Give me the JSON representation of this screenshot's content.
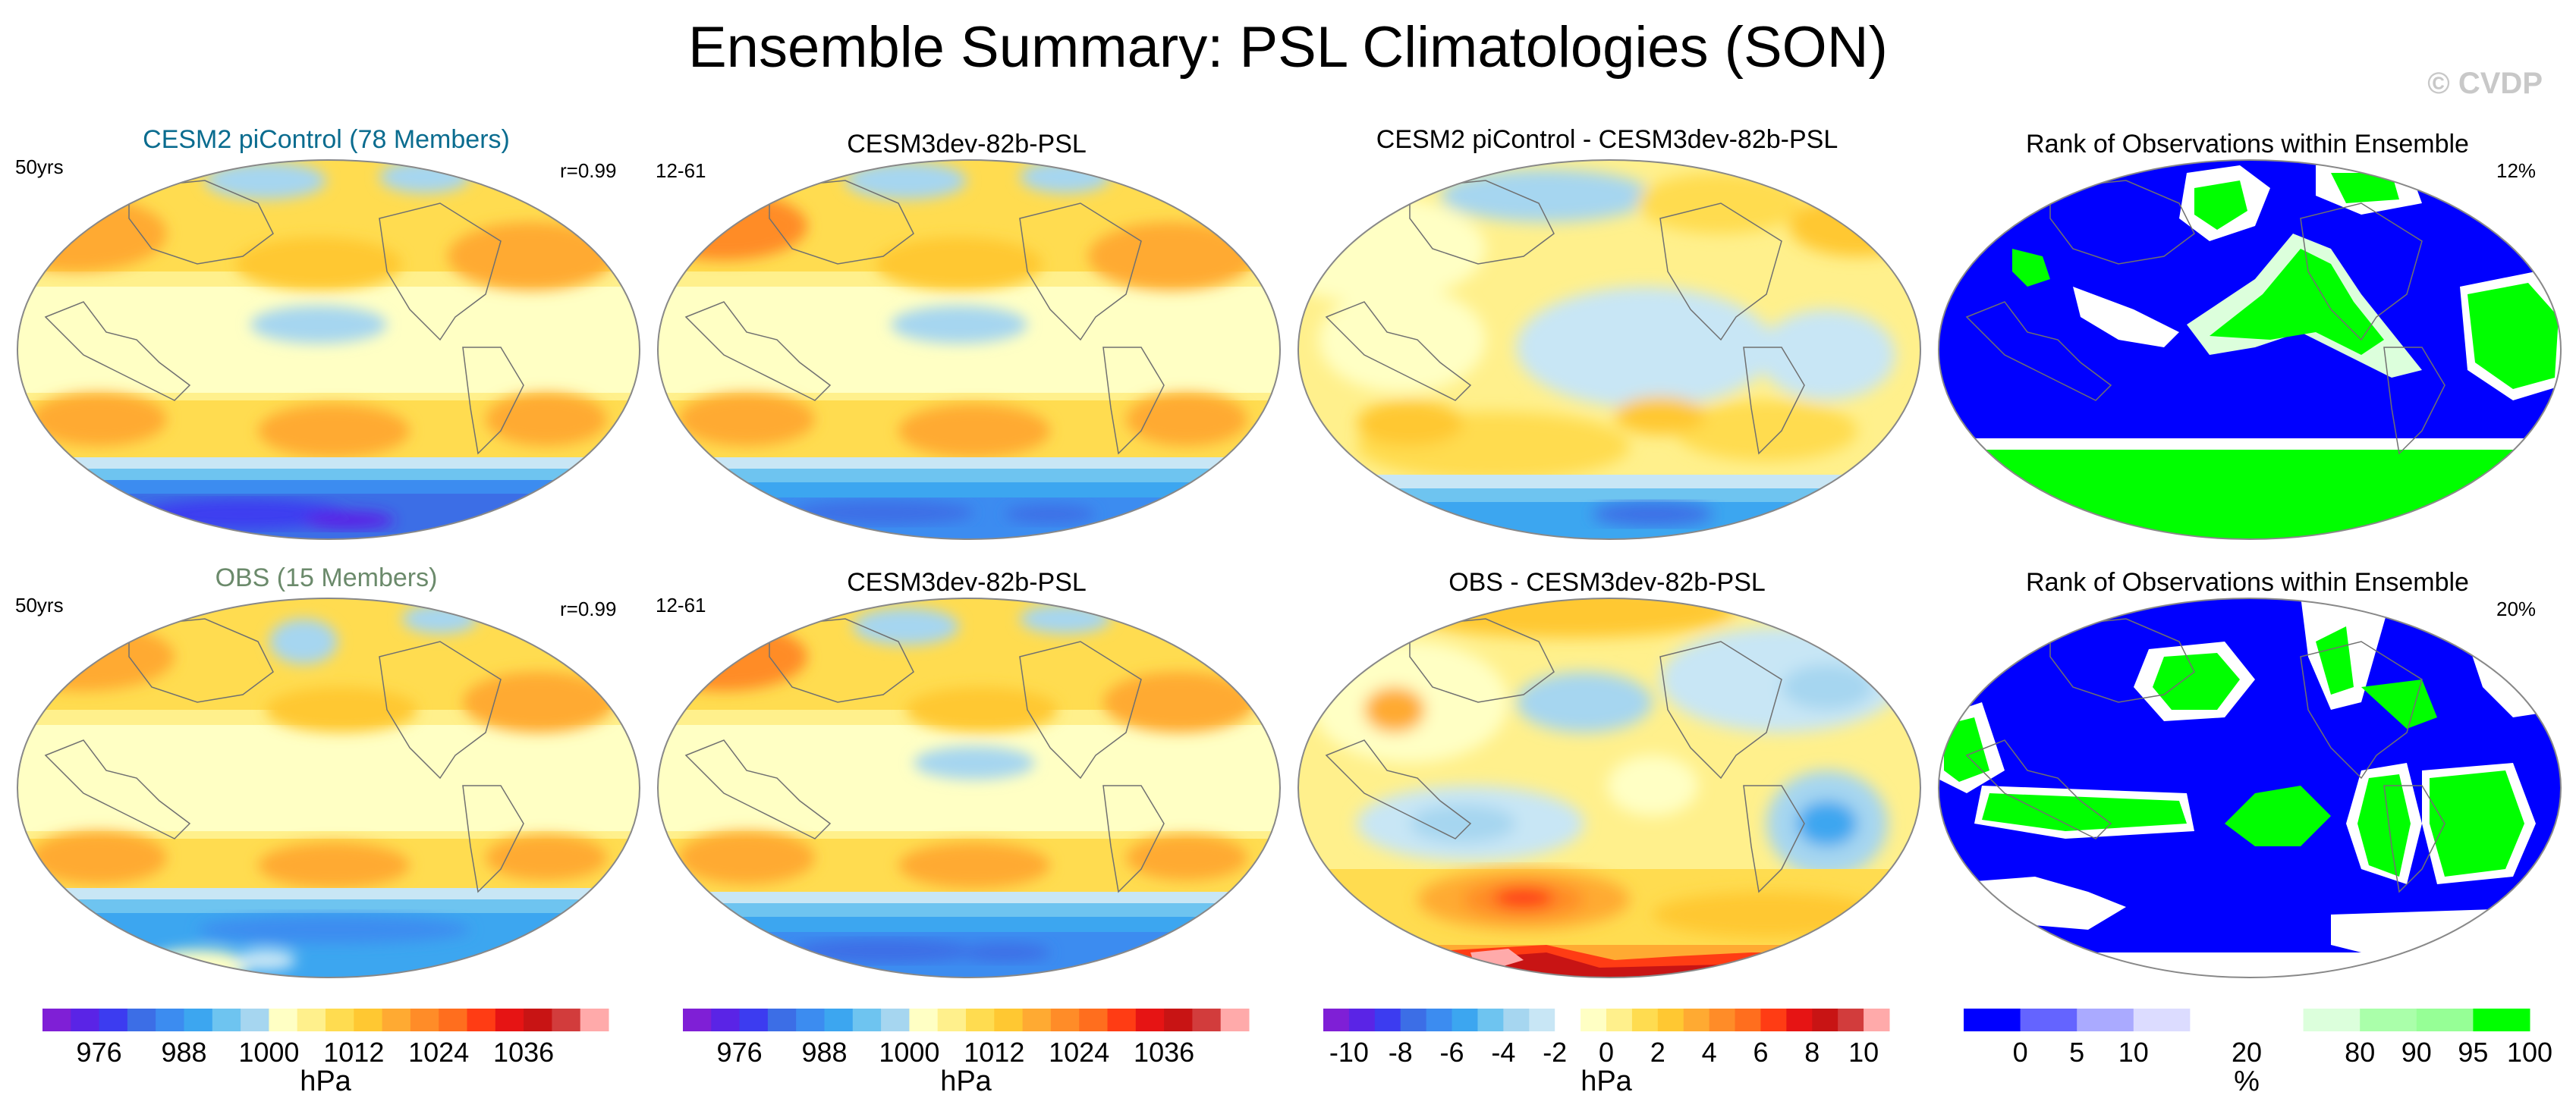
{
  "title": "Ensemble Summary: PSL Climatologies (SON)",
  "watermark": "© CVDP",
  "colors": {
    "title_ens": "#0a6c8f",
    "title_obs": "#6b8a6b",
    "psl_scale": [
      "#7f1fd6",
      "#5a24e6",
      "#3c3cf0",
      "#3c6ee6",
      "#3c8cf0",
      "#3ca6f0",
      "#6ec4f0",
      "#a6d6f0",
      "#ffffc4",
      "#fff08c",
      "#ffdc50",
      "#ffc832",
      "#ffaa32",
      "#ff8c28",
      "#ff6e1e",
      "#ff3c14",
      "#e61414",
      "#c81414",
      "#d23c3c",
      "#ffaaaa"
    ],
    "diff_scale": [
      "#7f1fd6",
      "#5a24e6",
      "#3c3cf0",
      "#3c6ee6",
      "#3c8cf0",
      "#3ca6f0",
      "#6ec4f0",
      "#a6d6f0",
      "#c8e6f5",
      "#ffffff",
      "#ffffc4",
      "#fff08c",
      "#ffdc50",
      "#ffc832",
      "#ffaa32",
      "#ff8c28",
      "#ff6e1e",
      "#ff3c14",
      "#e61414",
      "#c81414",
      "#d23c3c",
      "#ffaaaa"
    ],
    "rank_scale": [
      "#0000ff",
      "#6464ff",
      "#aaaaff",
      "#dcdcff",
      "#ffffff",
      "#ffffff",
      "#dcffdc",
      "#aaffaa",
      "#96ff96",
      "#00ff00"
    ]
  },
  "row1": {
    "p1": {
      "title": "CESM2 piControl (78 Members)",
      "left": "50yrs",
      "right": "r=0.99"
    },
    "p2": {
      "title": "CESM3dev-82b-PSL",
      "left": "12-61"
    },
    "p3": {
      "title": "CESM2 piControl - CESM3dev-82b-PSL"
    },
    "p4": {
      "title": "Rank of Observations within Ensemble",
      "right": "12%"
    }
  },
  "row2": {
    "p1": {
      "title": "OBS (15 Members)",
      "left": "50yrs",
      "right": "r=0.99"
    },
    "p2": {
      "title": "CESM3dev-82b-PSL",
      "left": "12-61"
    },
    "p3": {
      "title": "OBS - CESM3dev-82b-PSL"
    },
    "p4": {
      "title": "Rank of Observations within Ensemble",
      "right": "20%"
    }
  },
  "colorbars": {
    "psl": {
      "ticks": [
        "976",
        "988",
        "1000",
        "1012",
        "1024",
        "1036"
      ],
      "unit": "hPa"
    },
    "diff": {
      "ticks": [
        "-10",
        "-8",
        "-6",
        "-4",
        "-2",
        "0",
        "2",
        "4",
        "6",
        "8",
        "10"
      ],
      "unit": "hPa"
    },
    "rank": {
      "ticks": [
        "0",
        "5",
        "10",
        "20",
        "80",
        "90",
        "95",
        "100"
      ],
      "unit": "%"
    }
  }
}
